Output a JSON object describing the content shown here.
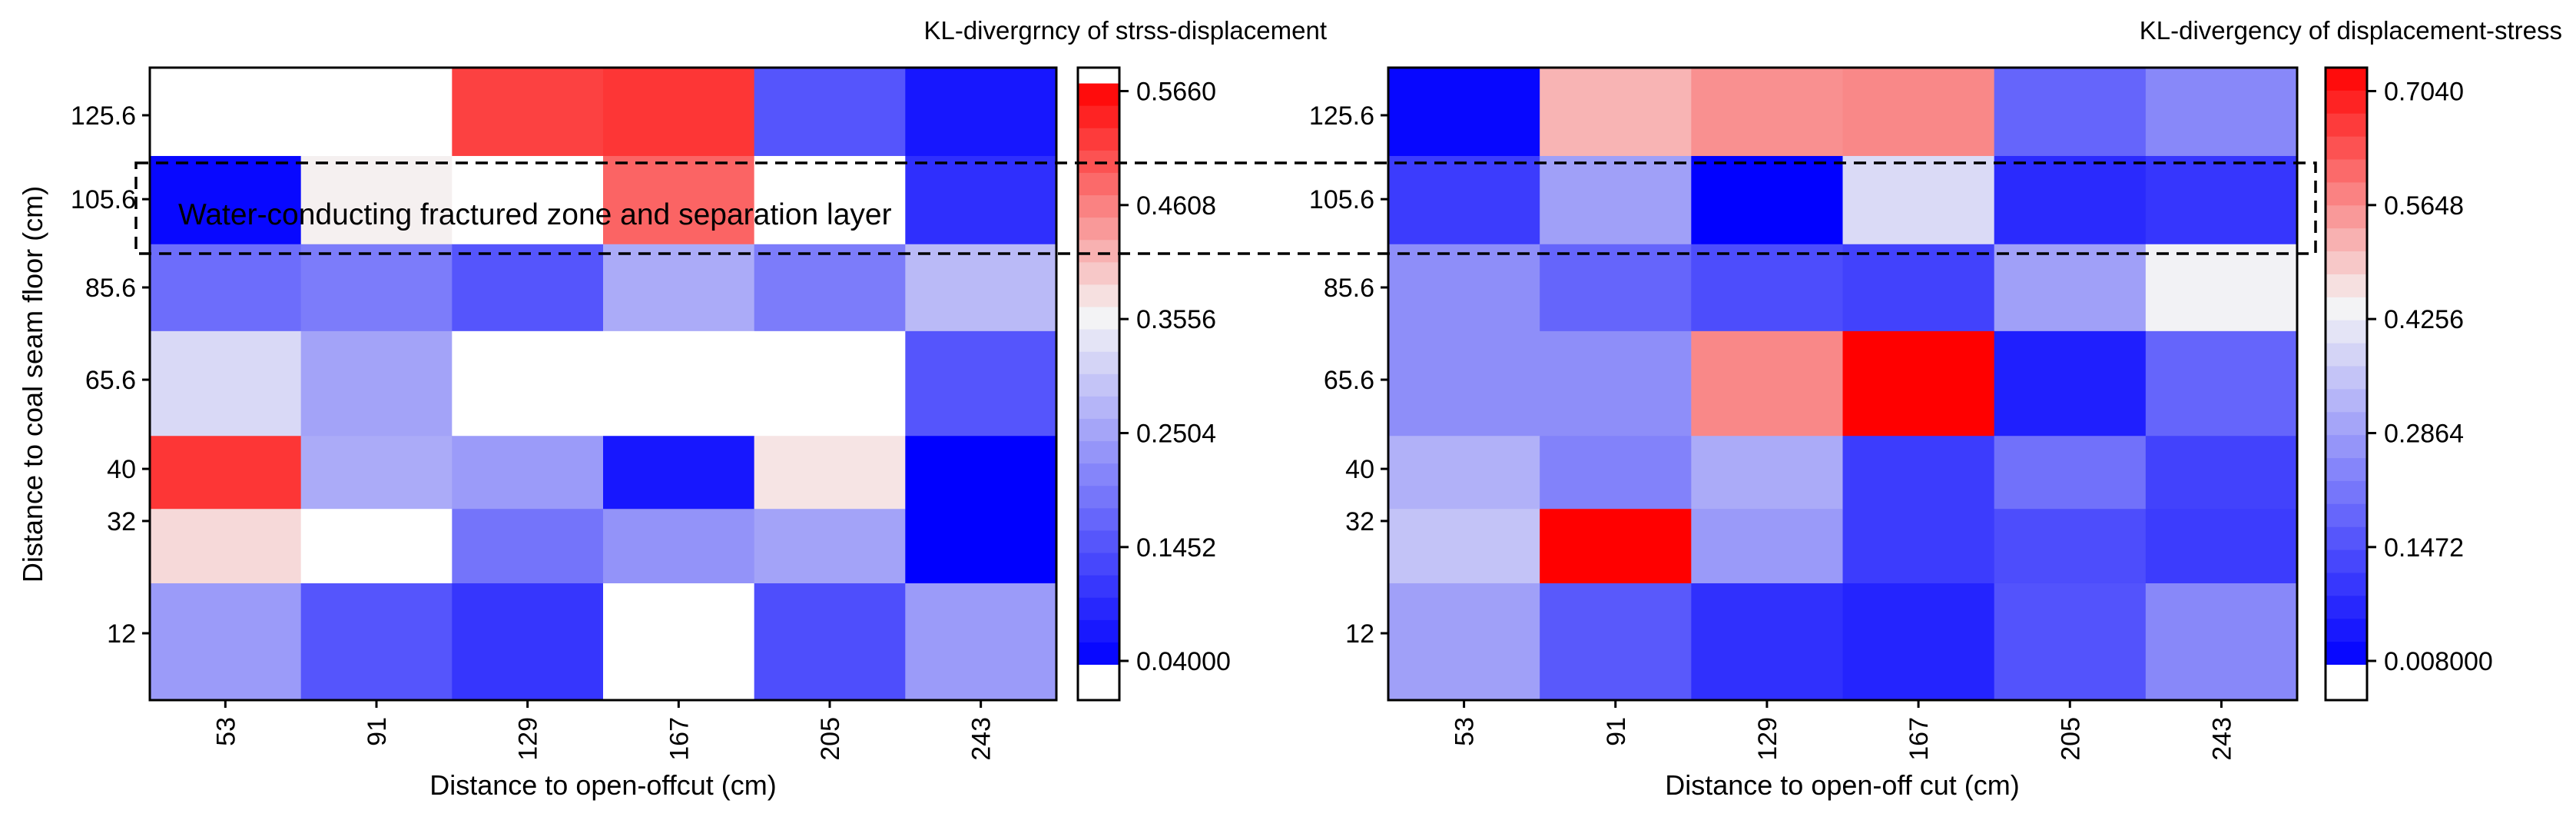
{
  "chart_data": [
    {
      "type": "heatmap",
      "title": "KL-divergrncy of strss-displacement",
      "xlabel": "Distance to open-offcut (cm)",
      "ylabel": "Distance to coal seam floor (cm)",
      "x_categories": [
        "53",
        "91",
        "129",
        "167",
        "205",
        "243"
      ],
      "y_categories": [
        "125.6",
        "105.6",
        "85.6",
        "65.6",
        "40",
        "32",
        "12"
      ],
      "values": [
        [
          0.566,
          0.566,
          0.51,
          0.52,
          0.15,
          0.07
        ],
        [
          0.05,
          0.36,
          0.566,
          0.48,
          0.566,
          0.1
        ],
        [
          0.18,
          0.2,
          0.15,
          0.26,
          0.2,
          0.28
        ],
        [
          0.32,
          0.25,
          0.566,
          0.566,
          0.566,
          0.15
        ],
        [
          0.52,
          0.26,
          0.24,
          0.07,
          0.37,
          0.04
        ],
        [
          0.38,
          0.566,
          0.19,
          0.23,
          0.25,
          0.04
        ],
        [
          0.24,
          0.15,
          0.11,
          0.566,
          0.14,
          0.24
        ]
      ],
      "colorbar": {
        "min": 0.04,
        "max": 0.566,
        "ticks": [
          "0.5660",
          "0.4608",
          "0.3556",
          "0.2504",
          "0.1452",
          "0.04000"
        ]
      },
      "annotation": "Water-conducting fractured zone and separation layer",
      "annotation_color": "#e53ae8",
      "highlight_row": "105.6",
      "color_low": "#0000ff",
      "color_mid": "#f5f5f5",
      "color_high": "#ff0000",
      "color_above_max": "#ffffff"
    },
    {
      "type": "heatmap",
      "title": "KL-divergency of displacement-stress",
      "xlabel": "Distance to open-off cut (cm)",
      "ylabel": "",
      "x_categories": [
        "53",
        "91",
        "129",
        "167",
        "205",
        "243"
      ],
      "y_categories": [
        "125.6",
        "105.6",
        "85.6",
        "65.6",
        "40",
        "32",
        "12"
      ],
      "values": [
        [
          0.02,
          0.5,
          0.54,
          0.55,
          0.18,
          0.24
        ],
        [
          0.11,
          0.28,
          0.01,
          0.38,
          0.08,
          0.1
        ],
        [
          0.25,
          0.18,
          0.14,
          0.12,
          0.28,
          0.42
        ],
        [
          0.25,
          0.25,
          0.55,
          0.704,
          0.06,
          0.18
        ],
        [
          0.31,
          0.23,
          0.3,
          0.11,
          0.2,
          0.12
        ],
        [
          0.34,
          0.704,
          0.27,
          0.11,
          0.14,
          0.11
        ],
        [
          0.28,
          0.16,
          0.09,
          0.07,
          0.15,
          0.24
        ]
      ],
      "colorbar": {
        "min": 0.008,
        "max": 0.704,
        "ticks": [
          "0.7040",
          "0.5648",
          "0.4256",
          "0.2864",
          "0.1472",
          "0.008000"
        ]
      },
      "highlight_row": "105.6",
      "color_low": "#0000ff",
      "color_mid": "#f5f5f5",
      "color_high": "#ff0000",
      "color_above_max": "#ffffff"
    }
  ]
}
